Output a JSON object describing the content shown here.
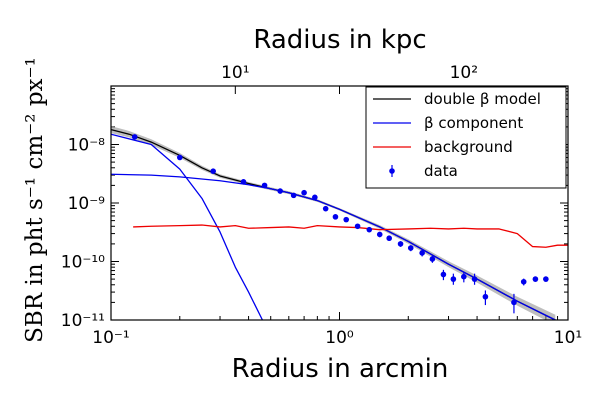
{
  "chart_data": {
    "type": "scatter",
    "xscale": "log",
    "yscale": "log",
    "xlim": [
      0.1,
      10
    ],
    "ylim": [
      1e-11,
      1e-07
    ],
    "xlabel": "Radius in arcmin",
    "ylabel": "SBR in pht s⁻¹ cm⁻² px⁻¹",
    "top_axis": {
      "label": "Radius in kpc",
      "ticks": [
        {
          "value_kpc": 10,
          "label": "10¹",
          "arcmin": 0.35
        },
        {
          "value_kpc": 100,
          "label": "10²",
          "arcmin": 3.5
        }
      ]
    },
    "xticks": [
      {
        "value": 0.1,
        "label": "10⁻¹"
      },
      {
        "value": 1,
        "label": "10⁰"
      },
      {
        "value": 10,
        "label": "10¹"
      }
    ],
    "yticks": [
      {
        "value": 1e-11,
        "label": "10⁻¹¹"
      },
      {
        "value": 1e-10,
        "label": "10⁻¹⁰"
      },
      {
        "value": 1e-09,
        "label": "10⁻⁹"
      },
      {
        "value": 1e-08,
        "label": "10⁻⁸"
      }
    ],
    "legend": {
      "position": "top-right",
      "entries": [
        {
          "label": "double β model",
          "color": "#000000",
          "kind": "line"
        },
        {
          "label": "β component",
          "color": "#0000ee",
          "kind": "line"
        },
        {
          "label": "background",
          "color": "#ee0000",
          "kind": "line"
        },
        {
          "label": "data",
          "color": "#0000ee",
          "kind": "errorbar"
        }
      ]
    },
    "series": [
      {
        "name": "double β model",
        "kind": "line",
        "color": "#000000",
        "band_color": "#888888",
        "points": [
          [
            0.1,
            1.8e-08
          ],
          [
            0.12,
            1.5e-08
          ],
          [
            0.15,
            1.1e-08
          ],
          [
            0.2,
            6.5e-09
          ],
          [
            0.25,
            4e-09
          ],
          [
            0.3,
            2.9e-09
          ],
          [
            0.4,
            2.15e-09
          ],
          [
            0.5,
            1.75e-09
          ],
          [
            0.6,
            1.5e-09
          ],
          [
            0.8,
            1.1e-09
          ],
          [
            1.0,
            7.8e-10
          ],
          [
            1.5,
            3.9e-10
          ],
          [
            2.0,
            2.2e-10
          ],
          [
            3.0,
            9e-11
          ],
          [
            4.0,
            5e-11
          ],
          [
            6.0,
            2.1e-11
          ],
          [
            8.0,
            1.2e-11
          ],
          [
            8.8,
            1e-11
          ]
        ],
        "band_width_dex": [
          [
            0.1,
            0.06
          ],
          [
            0.3,
            0.03
          ],
          [
            1.0,
            0.02
          ],
          [
            3.0,
            0.05
          ],
          [
            8.8,
            0.09
          ]
        ]
      },
      {
        "name": "β component",
        "kind": "line",
        "color": "#0000ee",
        "points": [
          [
            0.1,
            3.1e-09
          ],
          [
            0.15,
            3e-09
          ],
          [
            0.2,
            2.8e-09
          ],
          [
            0.3,
            2.4e-09
          ],
          [
            0.4,
            2.05e-09
          ],
          [
            0.5,
            1.75e-09
          ],
          [
            0.6,
            1.5e-09
          ],
          [
            0.8,
            1.1e-09
          ],
          [
            1.0,
            7.8e-10
          ],
          [
            1.5,
            3.9e-10
          ],
          [
            2.0,
            2.2e-10
          ],
          [
            3.0,
            9e-11
          ],
          [
            4.0,
            5e-11
          ],
          [
            6.0,
            2.1e-11
          ],
          [
            8.0,
            1.2e-11
          ],
          [
            8.8,
            1e-11
          ]
        ]
      },
      {
        "name": "β component (core)",
        "kind": "line",
        "color": "#0000ee",
        "points": [
          [
            0.1,
            1.5e-08
          ],
          [
            0.15,
            1e-08
          ],
          [
            0.2,
            3.8e-09
          ],
          [
            0.25,
            1.2e-09
          ],
          [
            0.3,
            3.2e-10
          ],
          [
            0.35,
            8e-11
          ],
          [
            0.4,
            3e-11
          ],
          [
            0.46,
            1e-11
          ]
        ]
      },
      {
        "name": "background",
        "kind": "line",
        "color": "#ee0000",
        "points": [
          [
            0.125,
            3.9e-10
          ],
          [
            0.15,
            4e-10
          ],
          [
            0.2,
            4.1e-10
          ],
          [
            0.25,
            4.2e-10
          ],
          [
            0.3,
            3.9e-10
          ],
          [
            0.35,
            4.1e-10
          ],
          [
            0.4,
            3.7e-10
          ],
          [
            0.5,
            3.8e-10
          ],
          [
            0.6,
            3.9e-10
          ],
          [
            0.7,
            3.7e-10
          ],
          [
            0.8,
            4.1e-10
          ],
          [
            1.0,
            3.9e-10
          ],
          [
            1.2,
            3.8e-10
          ],
          [
            1.5,
            3.5e-10
          ],
          [
            2.0,
            3.6e-10
          ],
          [
            2.5,
            3.7e-10
          ],
          [
            3.0,
            3.6e-10
          ],
          [
            3.5,
            3.7e-10
          ],
          [
            4.0,
            3.6e-10
          ],
          [
            5.0,
            3.6e-10
          ],
          [
            6.0,
            3e-10
          ],
          [
            7.0,
            1.8e-10
          ],
          [
            8.0,
            1.75e-10
          ],
          [
            9.0,
            1.9e-10
          ],
          [
            10.0,
            1.9e-10
          ]
        ]
      },
      {
        "name": "data",
        "kind": "errorbar",
        "color": "#0000ee",
        "points": [
          {
            "x": 0.127,
            "y": 1.35e-08,
            "ylo": 1.25e-08,
            "yhi": 1.45e-08
          },
          {
            "x": 0.2,
            "y": 6e-09,
            "ylo": 5.7e-09,
            "yhi": 6.3e-09
          },
          {
            "x": 0.28,
            "y": 3.5e-09,
            "ylo": 3.3e-09,
            "yhi": 3.7e-09
          },
          {
            "x": 0.38,
            "y": 2.3e-09,
            "ylo": 2.2e-09,
            "yhi": 2.4e-09
          },
          {
            "x": 0.47,
            "y": 2e-09,
            "ylo": 1.9e-09,
            "yhi": 2.1e-09
          },
          {
            "x": 0.55,
            "y": 1.6e-09,
            "ylo": 1.52e-09,
            "yhi": 1.68e-09
          },
          {
            "x": 0.63,
            "y": 1.35e-09,
            "ylo": 1.28e-09,
            "yhi": 1.42e-09
          },
          {
            "x": 0.7,
            "y": 1.5e-09,
            "ylo": 1.42e-09,
            "yhi": 1.58e-09
          },
          {
            "x": 0.78,
            "y": 1.25e-09,
            "ylo": 1.18e-09,
            "yhi": 1.32e-09
          },
          {
            "x": 0.87,
            "y": 8e-10,
            "ylo": 7.5e-10,
            "yhi": 8.5e-10
          },
          {
            "x": 0.96,
            "y": 5.8e-10,
            "ylo": 5.4e-10,
            "yhi": 6.2e-10
          },
          {
            "x": 1.07,
            "y": 5.2e-10,
            "ylo": 4.85e-10,
            "yhi": 5.55e-10
          },
          {
            "x": 1.2,
            "y": 4e-10,
            "ylo": 3.7e-10,
            "yhi": 4.3e-10
          },
          {
            "x": 1.35,
            "y": 3.5e-10,
            "ylo": 3.2e-10,
            "yhi": 3.8e-10
          },
          {
            "x": 1.5,
            "y": 2.9e-10,
            "ylo": 2.6e-10,
            "yhi": 3.2e-10
          },
          {
            "x": 1.65,
            "y": 2.5e-10,
            "ylo": 2.25e-10,
            "yhi": 2.75e-10
          },
          {
            "x": 1.85,
            "y": 2e-10,
            "ylo": 1.78e-10,
            "yhi": 2.22e-10
          },
          {
            "x": 2.05,
            "y": 1.7e-10,
            "ylo": 1.5e-10,
            "yhi": 1.9e-10
          },
          {
            "x": 2.3,
            "y": 1.4e-10,
            "ylo": 1.22e-10,
            "yhi": 1.58e-10
          },
          {
            "x": 2.55,
            "y": 1.1e-10,
            "ylo": 9.5e-11,
            "yhi": 1.25e-10
          },
          {
            "x": 2.85,
            "y": 6e-11,
            "ylo": 4.8e-11,
            "yhi": 7.2e-11
          },
          {
            "x": 3.15,
            "y": 5e-11,
            "ylo": 4e-11,
            "yhi": 6.2e-11
          },
          {
            "x": 3.5,
            "y": 5.5e-11,
            "ylo": 4.4e-11,
            "yhi": 6.6e-11
          },
          {
            "x": 3.9,
            "y": 5e-11,
            "ylo": 4e-11,
            "yhi": 6.2e-11
          },
          {
            "x": 4.35,
            "y": 2.5e-11,
            "ylo": 1.8e-11,
            "yhi": 3.2e-11
          },
          {
            "x": 5.8,
            "y": 2e-11,
            "ylo": 1.3e-11,
            "yhi": 2.8e-11
          },
          {
            "x": 6.4,
            "y": 4.5e-11,
            "ylo": 3.9e-11,
            "yhi": 5.1e-11
          },
          {
            "x": 7.2,
            "y": 5e-11,
            "ylo": 4.5e-11,
            "yhi": 5.5e-11
          },
          {
            "x": 8.0,
            "y": 5e-11,
            "ylo": 4.5e-11,
            "yhi": 5.5e-11
          }
        ]
      }
    ]
  }
}
